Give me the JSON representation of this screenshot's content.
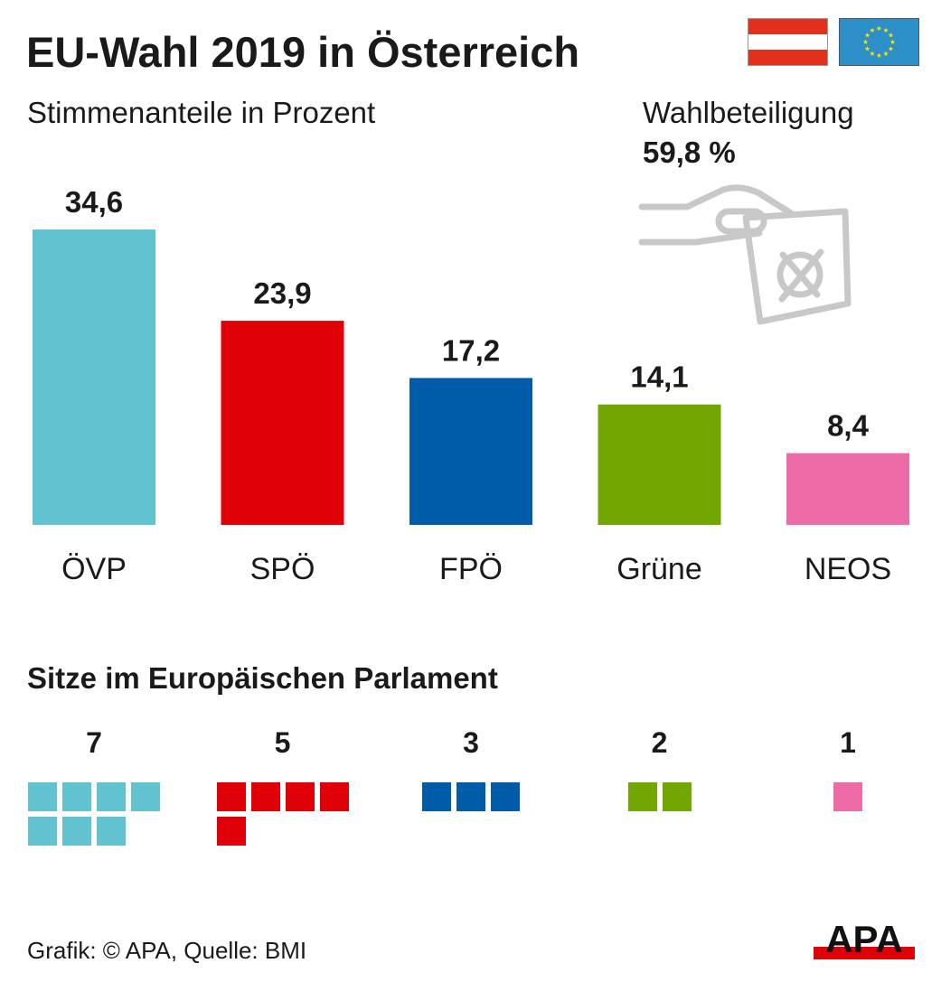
{
  "header": {
    "title": "EU-Wahl 2019 in Österreich",
    "subtitle": "Stimmenanteile in Prozent",
    "turnout_label": "Wahlbeteiligung",
    "turnout_value": "59,8 %"
  },
  "colors": {
    "OEVP": "#62c3d0",
    "SPOE": "#e00008",
    "FPOE": "#005ca8",
    "Gruene": "#72a600",
    "NEOS": "#ed6ba6",
    "text": "#1a1a1a",
    "icon_gray": "#c8c8c8",
    "flag_red": "#e1301c",
    "eu_blue": "#2c8fc8",
    "eu_star": "#f5e400"
  },
  "icons": [
    "flag-austria-icon",
    "flag-eu-icon",
    "ballot-hand-icon",
    "apa-logo-icon"
  ],
  "chart_data": {
    "type": "bar",
    "title": "EU-Wahl 2019 in Österreich",
    "subtitle": "Stimmenanteile in Prozent",
    "categories": [
      "ÖVP",
      "SPÖ",
      "FPÖ",
      "Grüne",
      "NEOS"
    ],
    "values": [
      34.6,
      23.9,
      17.2,
      14.1,
      8.4
    ],
    "value_labels": [
      "34,6",
      "23,9",
      "17,2",
      "14,1",
      "8,4"
    ],
    "ylim": [
      0,
      34.6
    ],
    "grid": false
  },
  "seats": {
    "title": "Sitze im Europäischen Parlament",
    "parties": [
      "ÖVP",
      "SPÖ",
      "FPÖ",
      "Grüne",
      "NEOS"
    ],
    "counts": [
      7,
      5,
      3,
      2,
      1
    ],
    "count_labels": [
      "7",
      "5",
      "3",
      "2",
      "1"
    ]
  },
  "footer": {
    "source": "Grafik: © APA, Quelle: BMI",
    "logo": "APA"
  }
}
